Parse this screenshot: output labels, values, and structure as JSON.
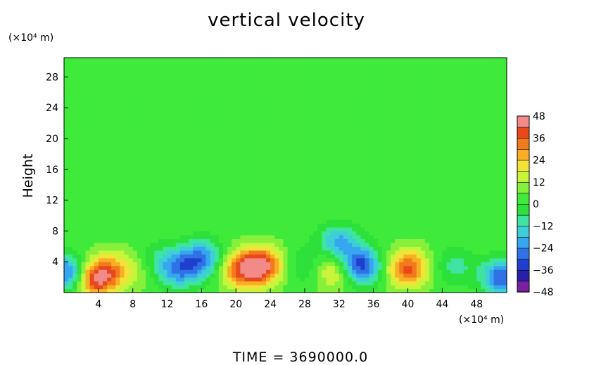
{
  "chart_data": {
    "type": "heatmap",
    "title": "vertical velocity",
    "ylabel": "Height",
    "xlabel": "",
    "x_unit": "(×10⁴ m)",
    "y_unit": "(×10⁴ m)",
    "footer": "TIME  =  3690000.0",
    "xlim": [
      0,
      51.5
    ],
    "ylim": [
      0,
      30.5
    ],
    "x_ticks": [
      4,
      8,
      12,
      16,
      20,
      24,
      28,
      32,
      36,
      40,
      44,
      48
    ],
    "y_ticks": [
      4,
      8,
      12,
      16,
      20,
      24,
      28
    ],
    "colorbar": {
      "range": [
        -48,
        48
      ],
      "ticks": [
        48,
        36,
        24,
        12,
        0,
        -12,
        -24,
        -36,
        -48
      ],
      "levels": 16
    },
    "field_features": [
      {
        "x": 23.0,
        "y": 3.5,
        "value": 40
      },
      {
        "x": 20.5,
        "y": 3.0,
        "value": 28
      },
      {
        "x": 3.5,
        "y": 1.8,
        "value": 38
      },
      {
        "x": 5.5,
        "y": 3.0,
        "value": 18
      },
      {
        "x": 40.0,
        "y": 3.2,
        "value": 34
      },
      {
        "x": 31.5,
        "y": 3.0,
        "value": 20
      },
      {
        "x": 8.5,
        "y": 3.0,
        "value": 8
      },
      {
        "x": 34.5,
        "y": 3.5,
        "value": -38
      },
      {
        "x": 32.0,
        "y": 6.5,
        "value": -24
      },
      {
        "x": 16.0,
        "y": 4.5,
        "value": -28
      },
      {
        "x": 13.5,
        "y": 3.0,
        "value": -24
      },
      {
        "x": 0.5,
        "y": 2.5,
        "value": -34
      },
      {
        "x": 51.0,
        "y": 2.0,
        "value": -34
      },
      {
        "x": 45.5,
        "y": 3.5,
        "value": -12
      },
      {
        "x": 28.0,
        "y": 3.5,
        "value": -10
      },
      {
        "x": 11.0,
        "y": 4.0,
        "value": -12
      }
    ]
  }
}
